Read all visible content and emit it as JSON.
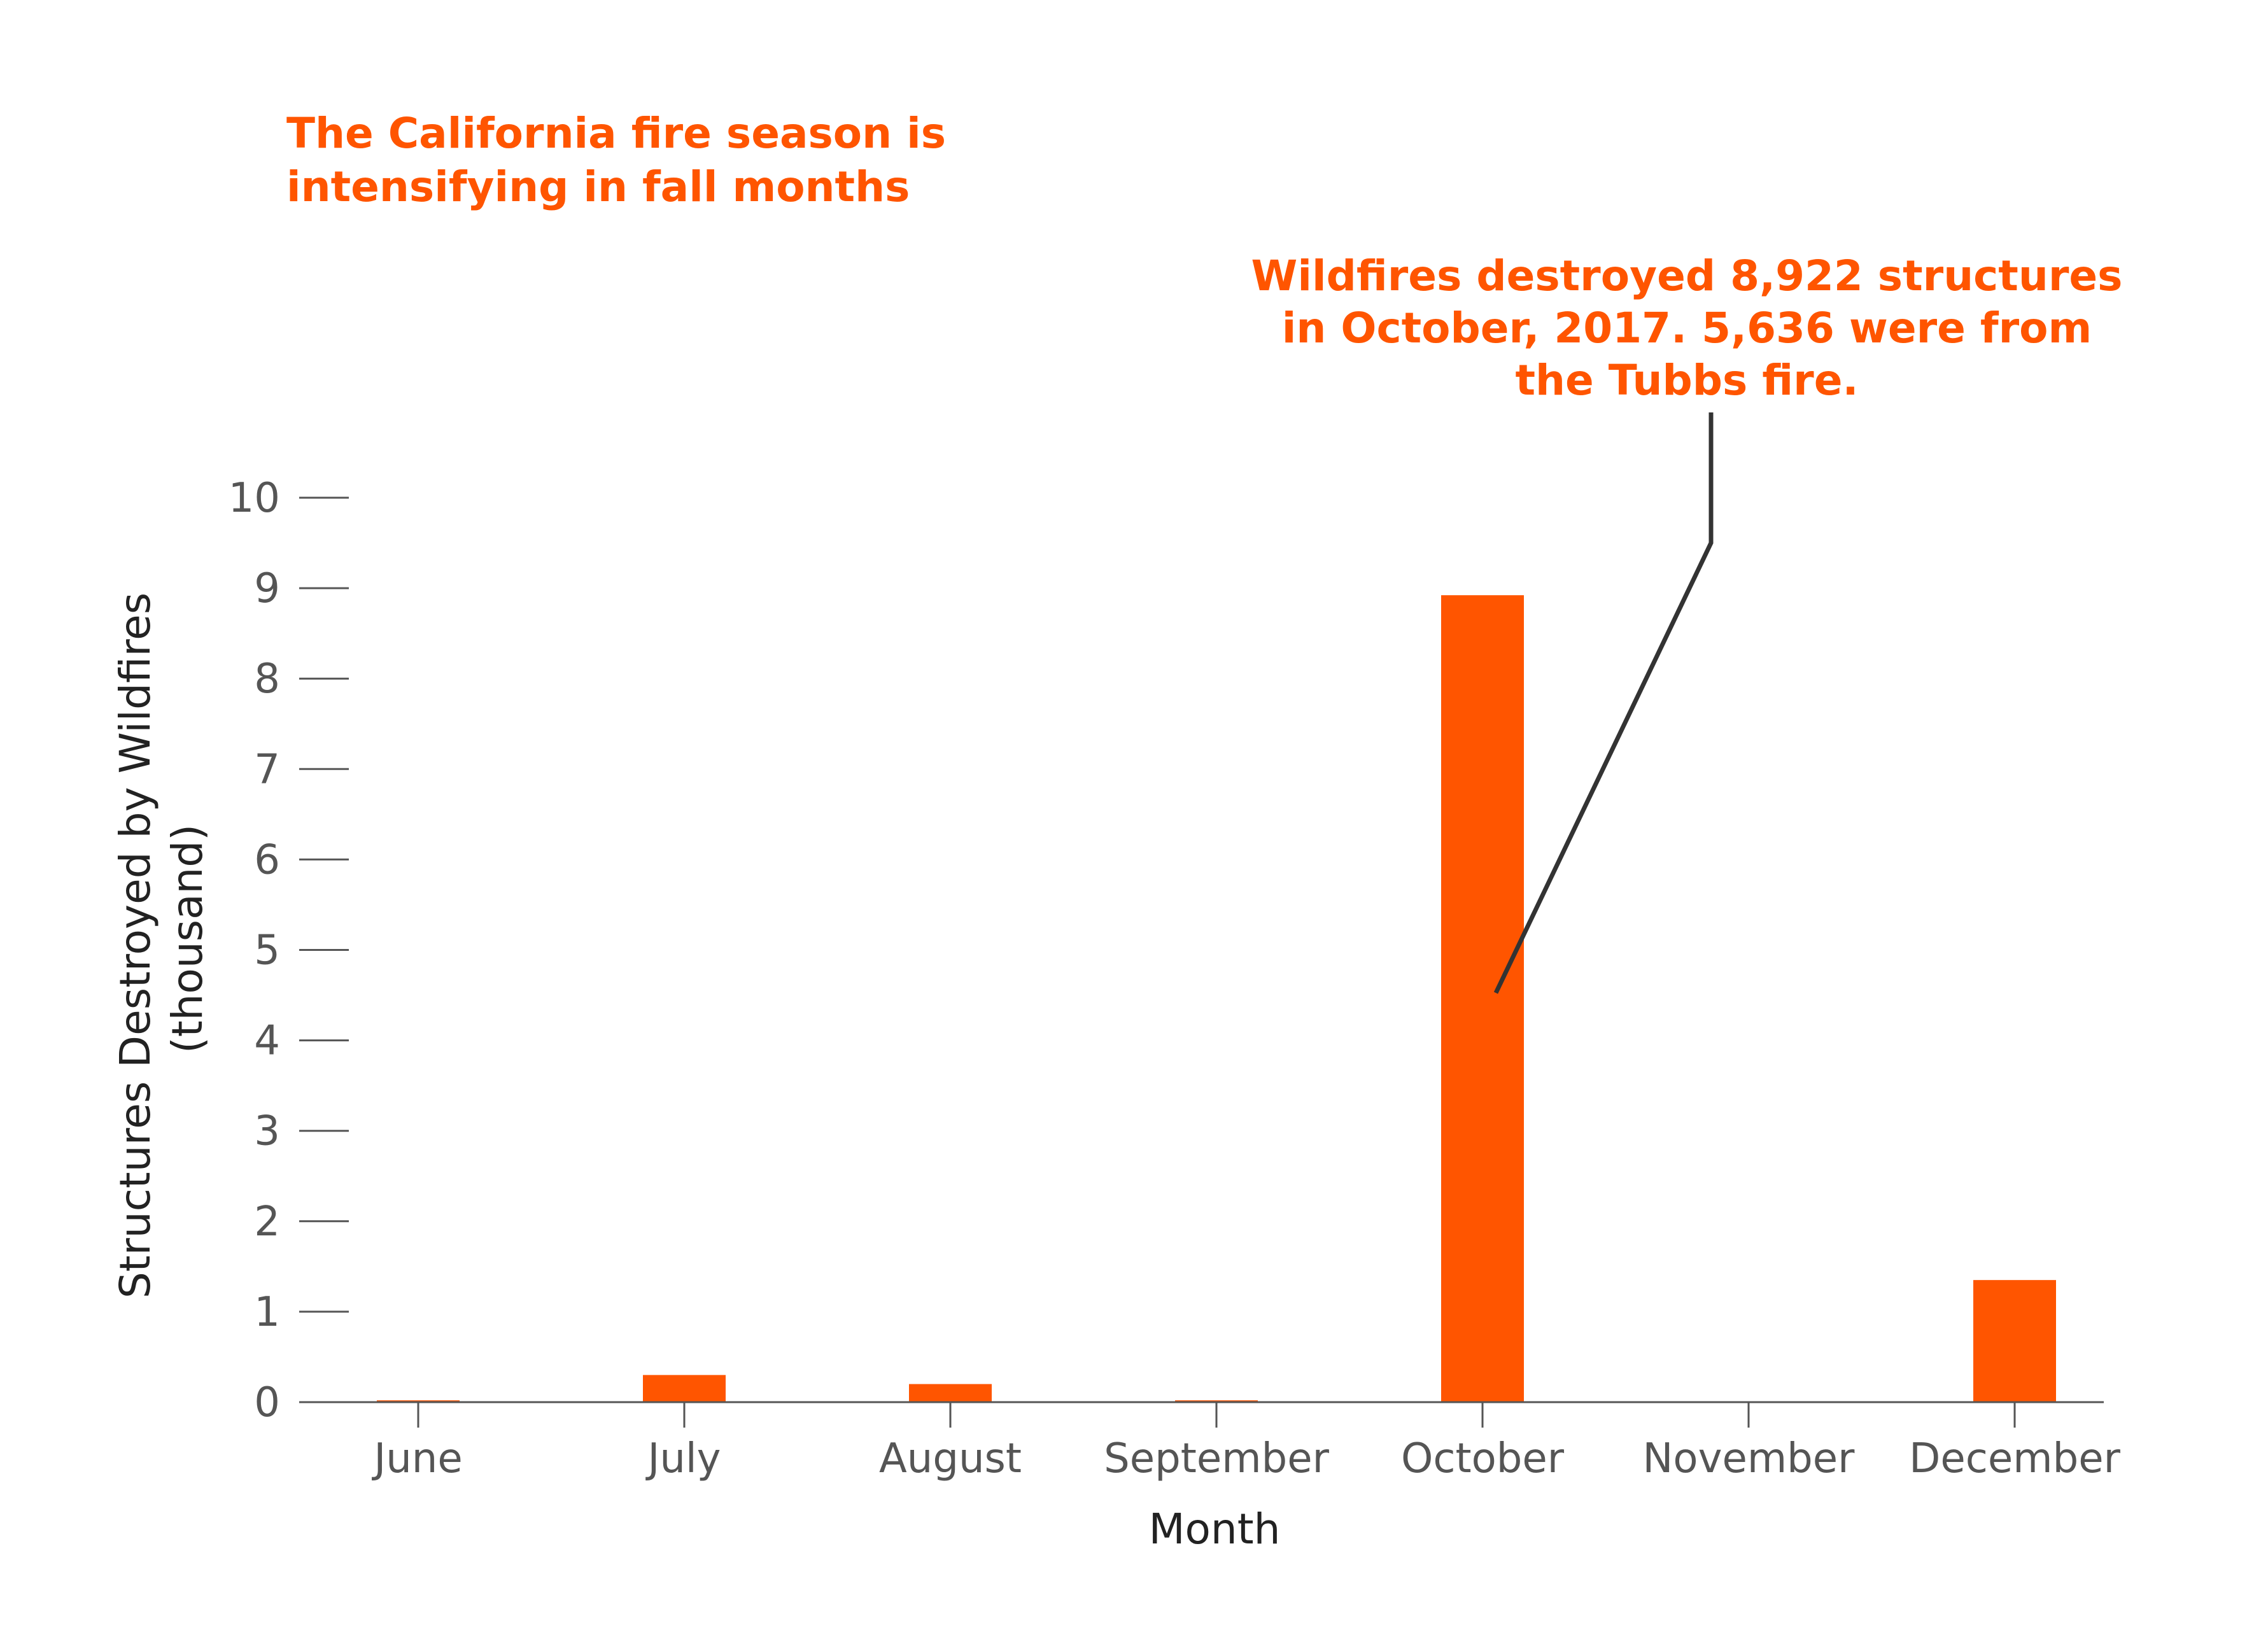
{
  "colors": {
    "bar": "#ff5500",
    "accent_text": "#ff5500",
    "axis": "#555555",
    "leader_line": "#333333"
  },
  "headline": {
    "line1": "The California fire season is",
    "line2": "intensifying in fall months"
  },
  "annotation": {
    "line1": "Wildfires destroyed 8,922 structures",
    "line2": "in October, 2017. 5,636 were from",
    "line3": "the Tubbs fire."
  },
  "chart_data": {
    "type": "bar",
    "categories": [
      "June",
      "July",
      "August",
      "September",
      "October",
      "November",
      "December"
    ],
    "values": [
      0.02,
      0.3,
      0.2,
      0.02,
      8.922,
      0,
      1.35
    ],
    "xlabel": "Month",
    "ylabel_line1": "Structures Destroyed by Wildfires",
    "ylabel_line2": "(thousand)",
    "ylim": [
      0,
      10
    ],
    "yticks": [
      0,
      1,
      2,
      3,
      4,
      5,
      6,
      7,
      8,
      9,
      10
    ],
    "grid": false,
    "legend": "none",
    "annotated_category": "October"
  }
}
